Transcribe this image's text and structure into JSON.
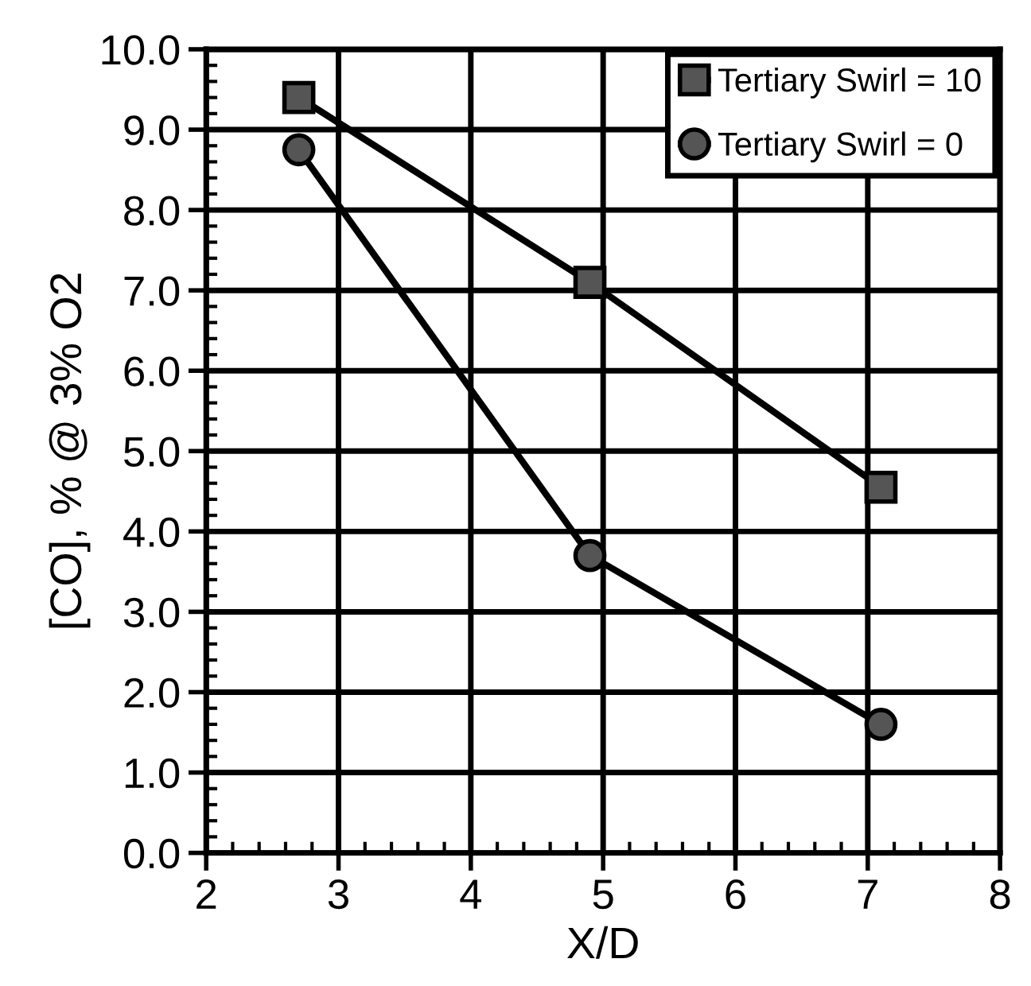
{
  "chart_data": {
    "type": "line",
    "xlabel": "X/D",
    "ylabel": "[CO], % @ 3% O2",
    "series": [
      {
        "name": "Tertiary Swirl = 10",
        "color": "#000000",
        "marker": "square",
        "x": [
          2.7,
          4.9,
          7.1
        ],
        "values": [
          9.4,
          7.1,
          4.55
        ]
      },
      {
        "name": "Tertiary Swirl = 0",
        "color": "#000000",
        "marker": "circle",
        "x": [
          2.7,
          4.9,
          7.1
        ],
        "values": [
          8.75,
          3.7,
          1.6
        ]
      }
    ],
    "xlim": [
      2,
      8
    ],
    "xticks": [
      2,
      3,
      4,
      5,
      6,
      7,
      8
    ],
    "ylim": [
      0,
      10
    ],
    "yticks": [
      {
        "value": 0,
        "label": "0.0"
      },
      {
        "value": 1,
        "label": "1.0"
      },
      {
        "value": 2,
        "label": "2.0"
      },
      {
        "value": 3,
        "label": "3.0"
      },
      {
        "value": 4,
        "label": "4.0"
      },
      {
        "value": 5,
        "label": "5.0"
      },
      {
        "value": 6,
        "label": "6.0"
      },
      {
        "value": 7,
        "label": "7.0"
      },
      {
        "value": 8,
        "label": "8.0"
      },
      {
        "value": 9,
        "label": "9.0"
      },
      {
        "value": 10,
        "label": "10.0"
      }
    ],
    "grid": true,
    "legend": "top right",
    "line_style": "solid"
  }
}
